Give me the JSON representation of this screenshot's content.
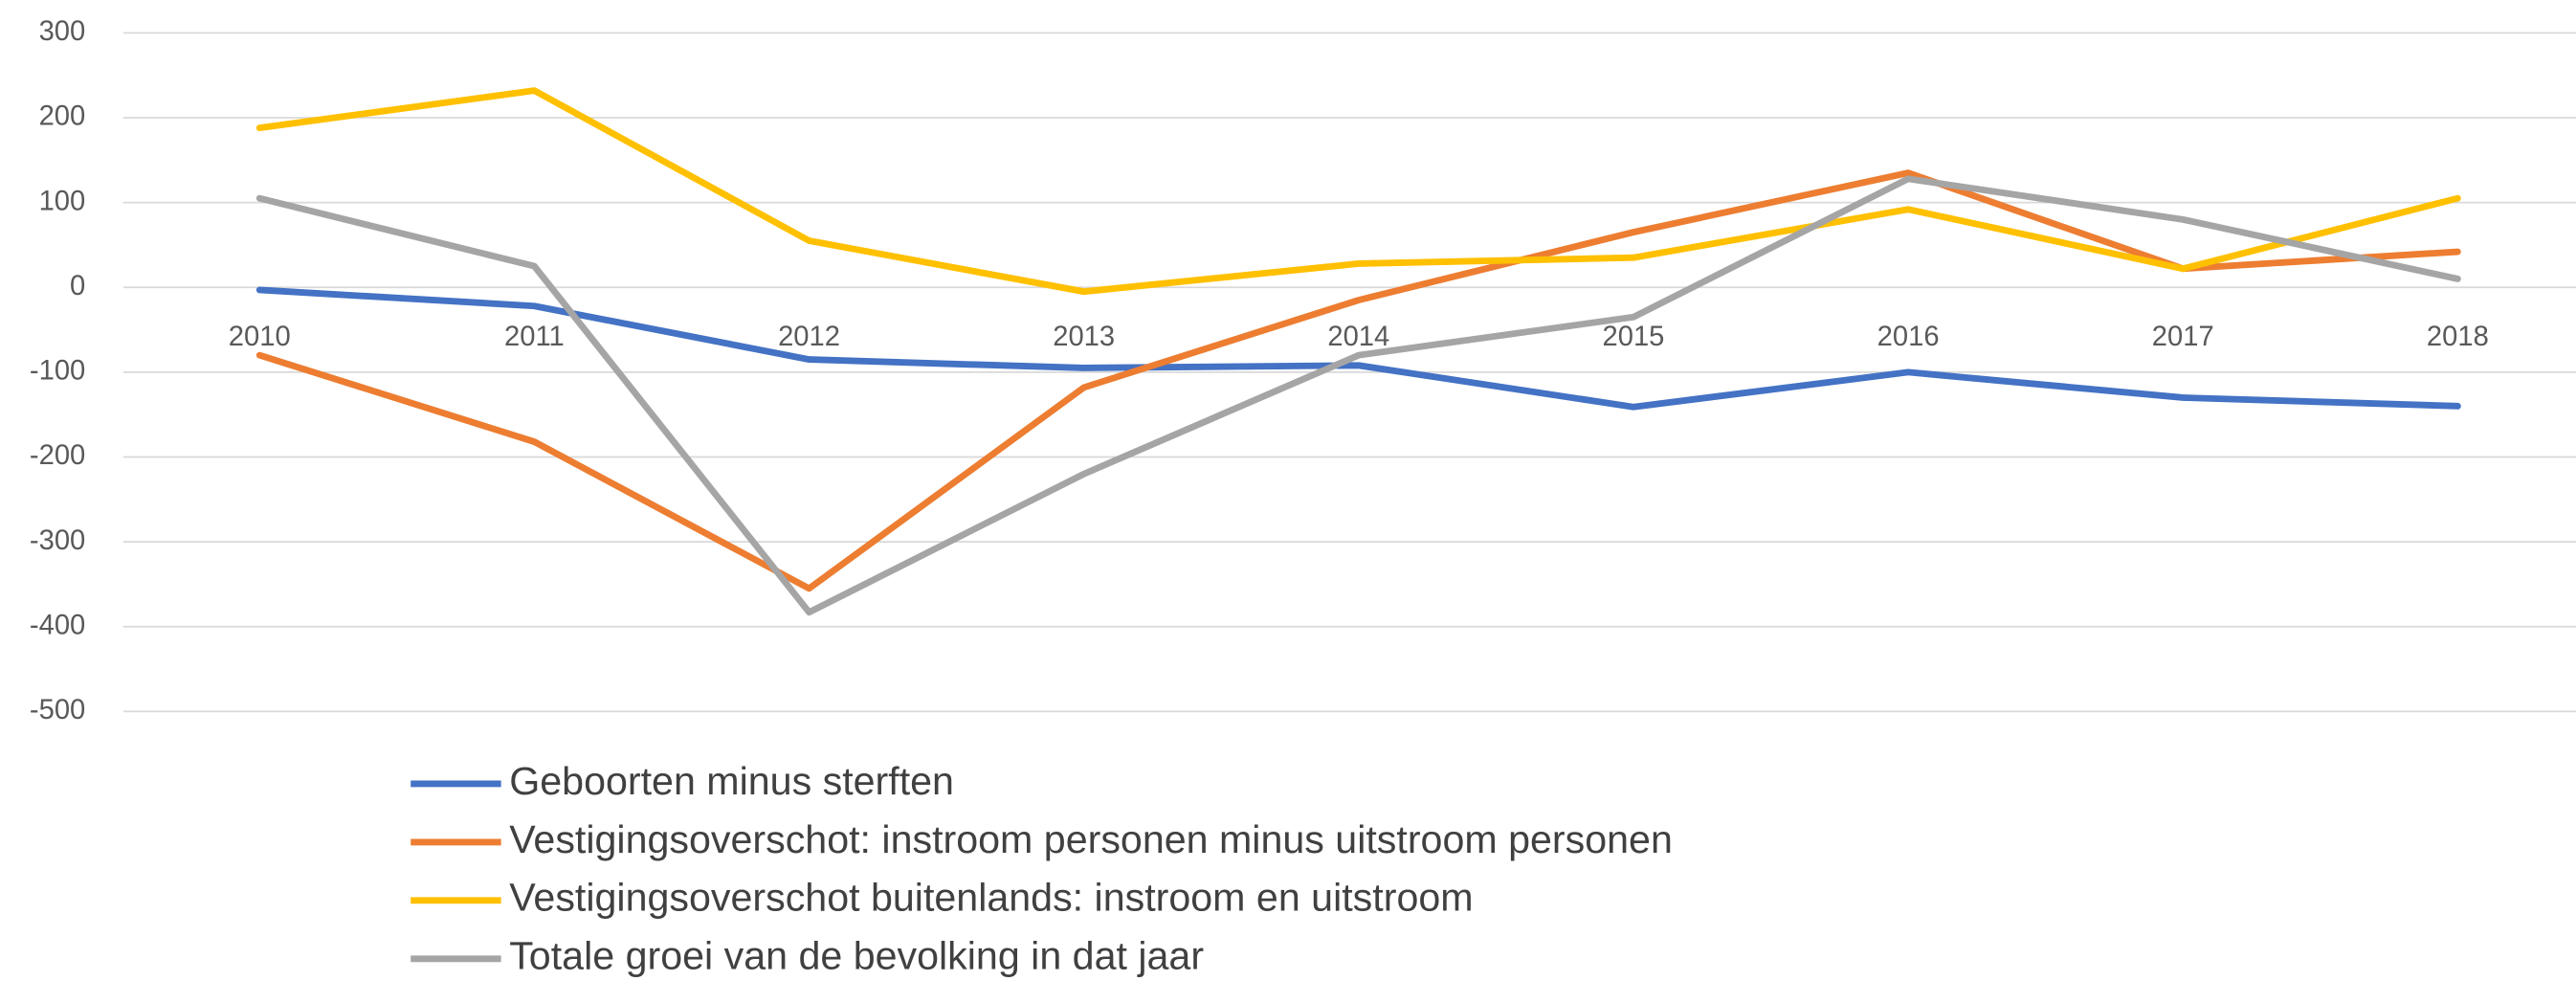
{
  "chart_data": {
    "type": "line",
    "categories": [
      "2010",
      "2011",
      "2012",
      "2013",
      "2014",
      "2015",
      "2016",
      "2017",
      "2018"
    ],
    "series": [
      {
        "name": "Geboorten minus sterften",
        "color": "#4472c4",
        "values": [
          -3,
          -22,
          -85,
          -95,
          -92,
          -141,
          -100,
          -130,
          -140
        ]
      },
      {
        "name": "Vestigingsoverschot: instroom personen minus uitstroom personen",
        "color": "#ed7d31",
        "values": [
          -80,
          -182,
          -355,
          -118,
          -15,
          65,
          135,
          22,
          42
        ]
      },
      {
        "name": "Vestigingsoverschot buitenlands: instroom en uitstroom",
        "color": "#ffc000",
        "values": [
          188,
          232,
          55,
          -5,
          28,
          35,
          92,
          22,
          105
        ]
      },
      {
        "name": "Totale groei van de bevolking in dat jaar",
        "color": "#a5a5a5",
        "values": [
          105,
          25,
          -383,
          -220,
          -80,
          -35,
          128,
          80,
          10
        ]
      }
    ],
    "ylim": [
      -500,
      300
    ],
    "yticks": [
      300,
      200,
      100,
      0,
      -100,
      -200,
      -300,
      -400,
      -500
    ],
    "grid": true,
    "legend": "bottom"
  }
}
